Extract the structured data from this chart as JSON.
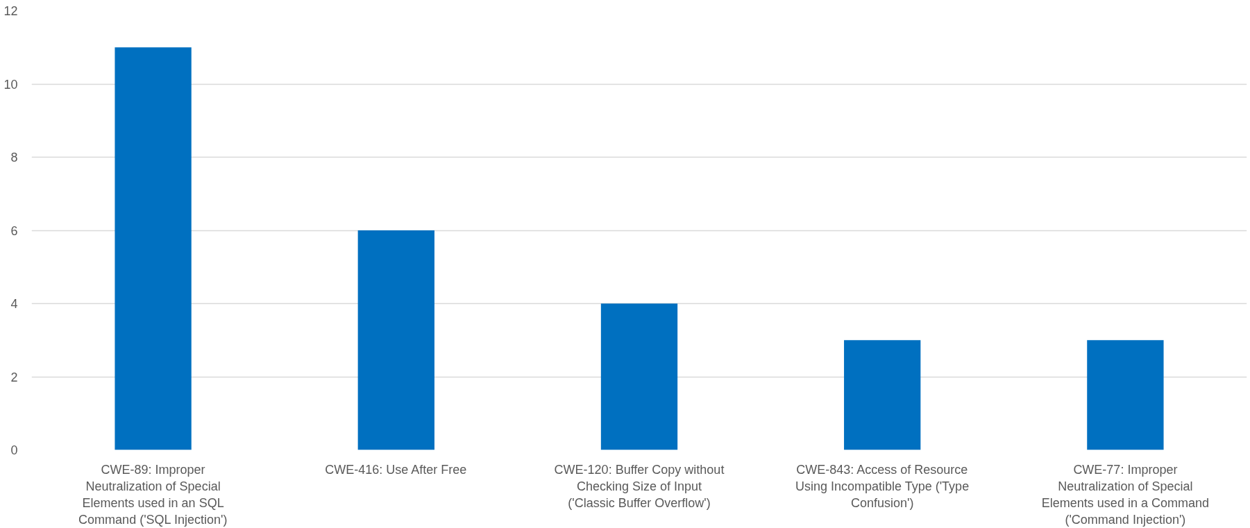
{
  "chart_data": {
    "type": "bar",
    "categories": [
      "CWE-89: Improper Neutralization of Special Elements used in an SQL Command ('SQL Injection')",
      "CWE-416: Use After Free",
      "CWE-120: Buffer Copy without Checking Size of Input ('Classic Buffer Overflow')",
      "CWE-843: Access of Resource Using Incompatible Type ('Type Confusion')",
      "CWE-77: Improper Neutralization of Special Elements used in a Command ('Command Injection')"
    ],
    "values": [
      11,
      6,
      4,
      3,
      3
    ],
    "color": "#0070c0",
    "ylim": [
      0,
      12
    ],
    "yticks": [
      0,
      2,
      4,
      6,
      8,
      10,
      12
    ],
    "grid": "y"
  }
}
